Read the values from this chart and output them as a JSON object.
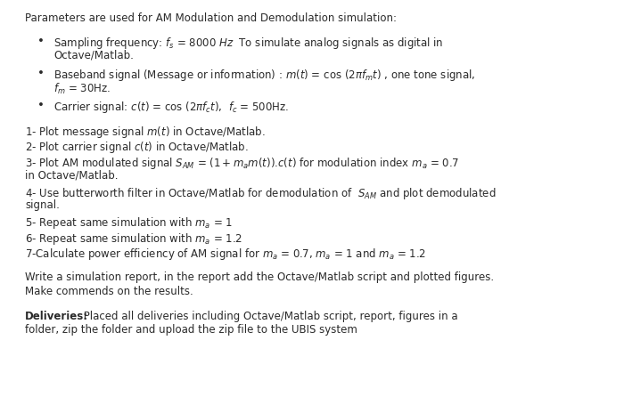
{
  "background_color": "#ffffff",
  "text_color": "#2a2a2a",
  "figsize": [
    7.0,
    4.46
  ],
  "dpi": 100,
  "header": "Parameters are used for AM Modulation and Demodulation simulation:",
  "bullet1_part1": "Sampling frequency: $f_s$ = 8000 $Hz$  To simulate analog signals as digital in",
  "bullet1_part2": "Octave/Matlab.",
  "bullet2_part1": "Baseband signal (Message or information) : $m(t)$ = cos $(2\\pi f_m t)$ , one tone signal,",
  "bullet2_part2": "$f_m$ = 30Hz.",
  "bullet3": "Carrier signal: $c(t)$ = cos $(2\\pi f_c t)$,  $f_c$ = 500Hz.",
  "item1": "1- Plot message signal $m(t)$ in Octave/Matlab.",
  "item2": "2- Plot carrier signal $c(t)$ in Octave/Matlab.",
  "item3_part1": "3- Plot AM modulated signal $S_{AM}$ = $(1 + m_a m(t))$.$c(t)$ for modulation index $m_a$ = 0.7",
  "item3_part2": "in Octave/Matlab.",
  "item4_part1": "4- Use butterworth filter in Octave/Matlab for demodulation of  $S_{AM}$ and plot demodulated",
  "item4_part2": "signal.",
  "item5": "5- Repeat same simulation with $m_a$ = 1",
  "item6": "6- Repeat same simulation with $m_a$ = 1.2",
  "item7": "7-Calculate power efficiency of AM signal for $m_a$ = 0.7, $m_a$ = 1 and $m_a$ = 1.2",
  "report_line1": "Write a simulation report, in the report add the Octave/Matlab script and plotted figures.",
  "report_line2": "Make commends on the results.",
  "deliveries_bold": "Deliveries:",
  "deliveries_rest_line1": " Placed all deliveries including Octave/Matlab script, report, figures in a",
  "deliveries_rest_line2": "folder, zip the folder and upload the zip file to the UBIS system"
}
